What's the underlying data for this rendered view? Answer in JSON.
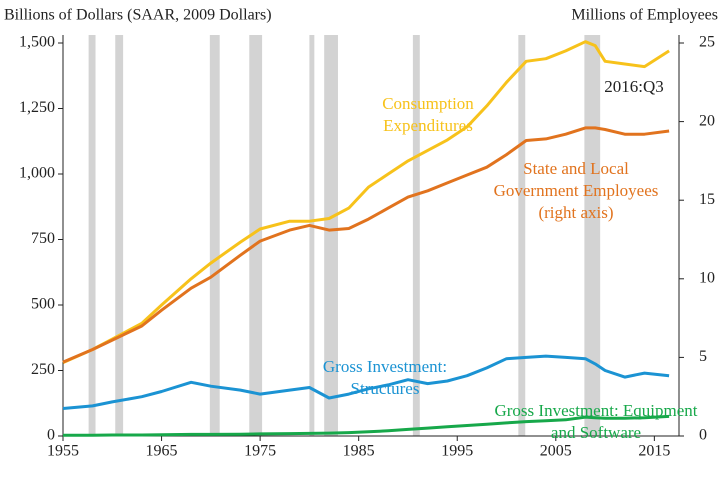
{
  "chart_data": {
    "type": "line",
    "y_label": "Billions of Dollars (SAAR, 2009 Dollars)",
    "y2_label": "Millions of Employees",
    "x": [
      1955,
      1958,
      1960,
      1963,
      1965,
      1968,
      1970,
      1973,
      1975,
      1978,
      1980,
      1982,
      1984,
      1986,
      1988,
      1990,
      1992,
      1994,
      1996,
      1998,
      2000,
      2002,
      2004,
      2006,
      2008,
      2009,
      2010,
      2012,
      2014,
      2016.5
    ],
    "series": [
      {
        "name": "Consumption Expenditures",
        "color": "#f7c21b",
        "values": [
          280,
          330,
          370,
          430,
          500,
          600,
          660,
          740,
          790,
          820,
          820,
          830,
          870,
          950,
          1000,
          1050,
          1090,
          1130,
          1180,
          1260,
          1350,
          1430,
          1440,
          1470,
          1505,
          1490,
          1430,
          1420,
          1410,
          1470
        ]
      },
      {
        "name": "State and Local Government Employees (right axis)",
        "color": "#e1731e",
        "axis": "y2",
        "values": [
          4.7,
          5.5,
          6.1,
          7.0,
          8.0,
          9.4,
          10.1,
          11.5,
          12.4,
          13.1,
          13.4,
          13.1,
          13.2,
          13.8,
          14.5,
          15.2,
          15.6,
          16.1,
          16.6,
          17.1,
          17.9,
          18.8,
          18.9,
          19.2,
          19.6,
          19.6,
          19.5,
          19.2,
          19.2,
          19.4
        ]
      },
      {
        "name": "Gross Investment: Structures",
        "color": "#1b93d3",
        "values": [
          105,
          115,
          130,
          150,
          170,
          205,
          190,
          175,
          160,
          175,
          185,
          145,
          160,
          180,
          195,
          215,
          200,
          210,
          230,
          260,
          295,
          300,
          305,
          300,
          295,
          275,
          250,
          225,
          240,
          230
        ]
      },
      {
        "name": "Gross Investment: Equipment and Software",
        "color": "#17a84a",
        "values": [
          3,
          3,
          4,
          4,
          5,
          6,
          6,
          7,
          8,
          9,
          10,
          11,
          13,
          16,
          20,
          25,
          30,
          35,
          40,
          45,
          50,
          55,
          58,
          62,
          72,
          70,
          68,
          68,
          70,
          75
        ]
      }
    ],
    "annotations": [
      {
        "lines": [
          "Consumption",
          "Expenditures"
        ]
      },
      {
        "lines": [
          "State and Local",
          "Government Employees",
          "(right axis)"
        ]
      },
      {
        "lines": [
          "Gross Investment:",
          "Structures"
        ]
      },
      {
        "lines": [
          "Gross Investment: Equipment",
          "and Software"
        ]
      },
      {
        "lines": [
          "2016:Q3"
        ]
      }
    ],
    "recessions": [
      [
        1957.6,
        1958.3
      ],
      [
        1960.3,
        1961.1
      ],
      [
        1969.9,
        1970.9
      ],
      [
        1973.9,
        1975.2
      ],
      [
        1980.0,
        1980.5
      ],
      [
        1981.5,
        1982.9
      ],
      [
        1990.5,
        1991.2
      ],
      [
        2001.2,
        2001.9
      ],
      [
        2007.9,
        2009.5
      ]
    ],
    "xlim": [
      1955,
      2017.5
    ],
    "xticks": [
      1955,
      1965,
      1975,
      1985,
      1995,
      2005,
      2015
    ],
    "ylim": [
      0,
      1500
    ],
    "yticks": [
      0,
      250,
      500,
      750,
      {
        "value": 1000,
        "label": "1,000"
      },
      {
        "value": 1250,
        "label": "1,250"
      },
      {
        "value": 1500,
        "label": "1,500"
      }
    ],
    "y2lim": [
      0,
      25
    ],
    "y2ticks": [
      0,
      5,
      10,
      15,
      20,
      25
    ]
  }
}
